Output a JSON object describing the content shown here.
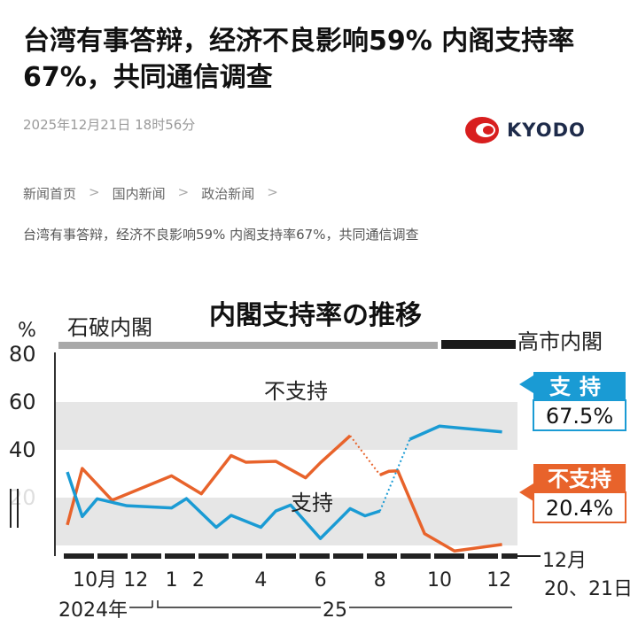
{
  "article": {
    "title": "台湾有事答辩，经济不良影响59% 内阁支持率67%，共同通信调查",
    "date": "2025年12月21日 18时56分",
    "source_logo": "KYODO",
    "breadcrumb": [
      "新闻首页",
      "国内新闻",
      "政治新闻"
    ],
    "breadcrumb_current": "台湾有事答辩，经济不良影响59% 内阁支持率67%，共同通信调查"
  },
  "chart_data": {
    "type": "line",
    "title": "内閣支持率の推移",
    "ylabel": "%",
    "ylim": [
      0,
      80
    ],
    "yticks": [
      "80",
      "60",
      "40",
      "20"
    ],
    "grid_bands": true,
    "cabinets": [
      "石破内閣",
      "高市内閣"
    ],
    "x_ticks": [
      "10月",
      "12",
      "1",
      "2",
      "4",
      "6",
      "8",
      "10",
      "12"
    ],
    "x_end_label": [
      "12月",
      "20、21日"
    ],
    "year_labels": [
      "2024年",
      "25"
    ],
    "series": [
      {
        "name": "不支持",
        "color": "#e8632b",
        "end_value": "20.4%",
        "values": [
          28.6,
          52.2,
          38.9,
          49.1,
          41.6,
          57.6,
          54.8,
          55.2,
          48.3,
          54.6,
          65.9,
          49.5,
          51.0,
          51.2,
          24.9,
          17.7,
          20.4
        ],
        "x": [
          0,
          0.5,
          1.5,
          3.5,
          4.5,
          5.5,
          6,
          7,
          8,
          8.5,
          9.5,
          10.5,
          10.8,
          11.1,
          12,
          13,
          14.6
        ]
      },
      {
        "name": "支持",
        "color": "#1a9bd4",
        "end_value": "67.5%",
        "values": [
          50.7,
          32.1,
          39.5,
          36.6,
          35.7,
          39.6,
          27.6,
          32.6,
          27.6,
          34.4,
          36.9,
          22.9,
          35.4,
          32.4,
          34.4,
          64.4,
          69.9,
          67.5
        ],
        "x": [
          0,
          0.5,
          1,
          2,
          3.5,
          4,
          5,
          5.5,
          6.5,
          7,
          7.5,
          8.5,
          9.5,
          10,
          10.5,
          11.5,
          12.5,
          14.6
        ]
      }
    ]
  }
}
